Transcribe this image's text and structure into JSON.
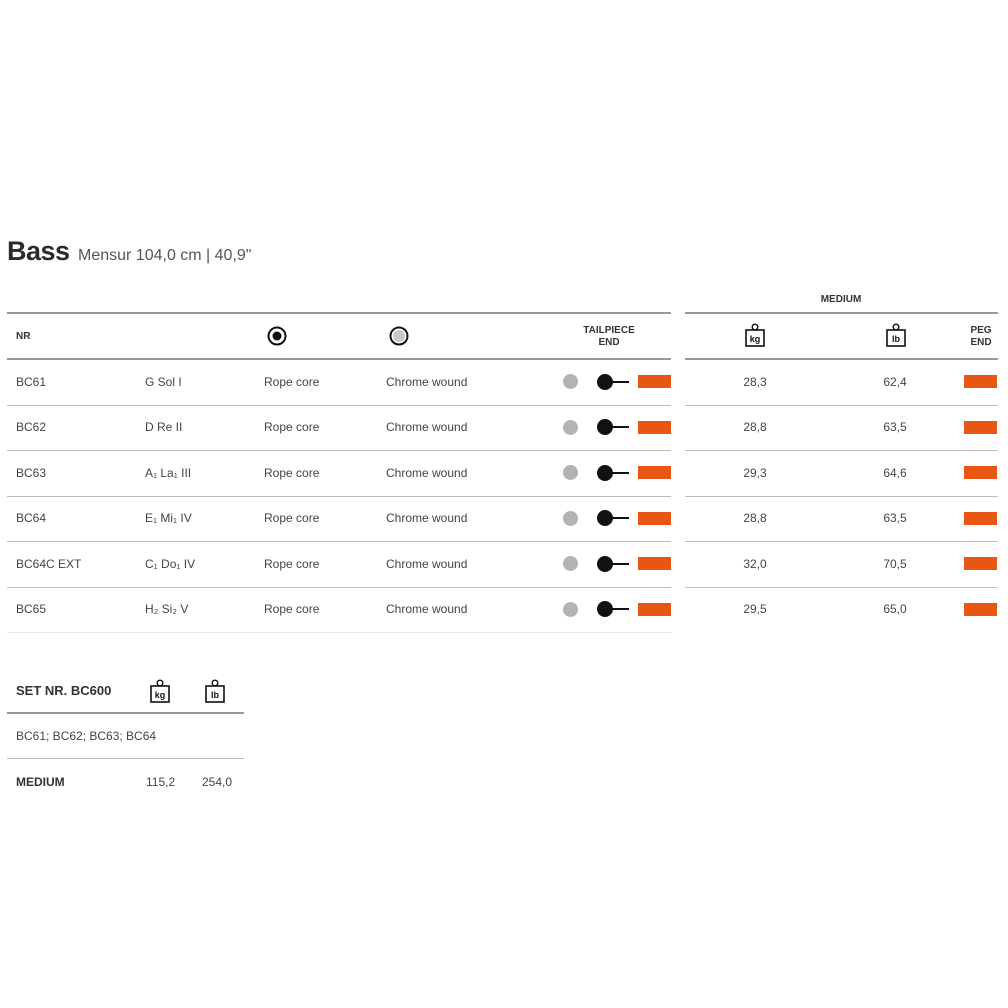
{
  "header": {
    "title": "Bass",
    "subtitle": "Mensur 104,0 cm | 40,9\""
  },
  "table": {
    "col_nr": "NR",
    "col_tailpiece": "TAILPIECE END",
    "col_tailpiece_l1": "TAILPIECE",
    "col_tailpiece_l2": "END",
    "tension_group": "MEDIUM",
    "col_peg_l1": "PEG",
    "col_peg_l2": "END",
    "icons": {
      "core_icon": "filled-circle-icon",
      "winding_icon": "grey-circle-icon",
      "kg_icon": "kg-weight-icon",
      "lb_icon": "lb-weight-icon",
      "ball_end_icon": "ball-end-icon"
    },
    "rows": [
      {
        "nr": "BC61",
        "note": "G  Sol  I",
        "core": "Rope core",
        "winding": "Chrome wound",
        "kg": "28,3",
        "lb": "62,4"
      },
      {
        "nr": "BC62",
        "note": "D  Re  II",
        "core": "Rope core",
        "winding": "Chrome wound",
        "kg": "28,8",
        "lb": "63,5"
      },
      {
        "nr": "BC63",
        "note": "A₁  La₁  III",
        "core": "Rope core",
        "winding": "Chrome wound",
        "kg": "29,3",
        "lb": "64,6"
      },
      {
        "nr": "BC64",
        "note": "E₁  Mi₁  IV",
        "core": "Rope core",
        "winding": "Chrome wound",
        "kg": "28,8",
        "lb": "63,5"
      },
      {
        "nr": "BC64C EXT",
        "note": "C₁  Do₁  IV",
        "core": "Rope core",
        "winding": "Chrome wound",
        "kg": "32,0",
        "lb": "70,5"
      },
      {
        "nr": "BC65",
        "note": "H₂  Si₂  V",
        "core": "Rope core",
        "winding": "Chrome wound",
        "kg": "29,5",
        "lb": "65,0"
      }
    ]
  },
  "set": {
    "title": "SET NR. BC600",
    "contents": "BC61; BC62; BC63; BC64",
    "tension": "MEDIUM",
    "kg": "115,2",
    "lb": "254,0"
  },
  "colors": {
    "accent_orange": "#e85613",
    "grey_dot": "#b3b3b3",
    "rule": "#bdbdbd"
  }
}
